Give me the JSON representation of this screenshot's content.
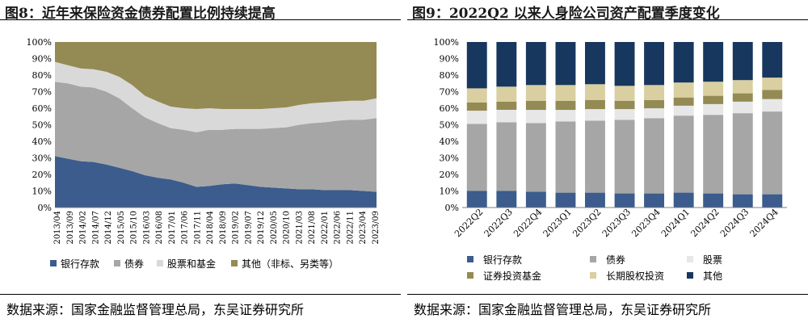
{
  "charts": [
    {
      "title": "图8：近年来保险资金债券配置比例持续提高",
      "source": "数据来源：国家金融监督管理总局，东吴证券研究所",
      "chart_data": {
        "type": "area",
        "stacked": true,
        "y_ticks": [
          "100%",
          "90%",
          "80%",
          "70%",
          "60%",
          "50%",
          "40%",
          "30%",
          "20%",
          "10%",
          "0%"
        ],
        "ylim": [
          0,
          100
        ],
        "x_tick_labels": [
          "2013/04",
          "2013/09",
          "2014/02",
          "2014/07",
          "2014/12",
          "2015/05",
          "2015/10",
          "2016/03",
          "2016/08",
          "2017/01",
          "2017/06",
          "2017/11",
          "2018/04",
          "2018/09",
          "2019/02",
          "2019/07",
          "2019/12",
          "2020/05",
          "2020/10",
          "2021/03",
          "2021/08",
          "2022/01",
          "2022/06",
          "2022/11",
          "2023/04",
          "2023/09"
        ],
        "series": [
          {
            "name": "银行存款",
            "color": "#3B5C8C",
            "values": [
              31,
              29.5,
              28,
              27.5,
              26,
              24,
              22,
              19.5,
              18,
              17,
              15,
              12.5,
              13,
              14,
              14.5,
              13.5,
              12.5,
              12,
              11.5,
              11,
              11,
              10.5,
              10.5,
              10.5,
              10,
              9.5
            ]
          },
          {
            "name": "债券",
            "color": "#A6A6A6",
            "values": [
              45,
              45.5,
              45,
              45,
              44,
              42,
              38,
              35,
              33,
              31,
              32,
              33,
              34,
              33,
              33,
              34,
              35,
              36,
              37,
              39,
              40,
              41,
              42,
              42.5,
              43,
              44.5
            ]
          },
          {
            "name": "股票和基金",
            "color": "#D9D9D9",
            "values": [
              12,
              11,
              11,
              11,
              12,
              13,
              14,
              13,
              13,
              13,
              13,
              14,
              13,
              12.5,
              12,
              12,
              12,
              12,
              12,
              12,
              12,
              12,
              11.5,
              11.5,
              11.5,
              12
            ]
          },
          {
            "name": "其他（非标、另类等）",
            "color": "#948A54",
            "values": [
              12,
              14,
              16,
              16.5,
              18,
              21,
              26,
              32.5,
              36,
              39,
              40,
              40.5,
              40,
              40.5,
              40.5,
              40.5,
              40.5,
              40,
              39.5,
              38,
              37,
              36.5,
              36,
              35.5,
              35.5,
              34
            ]
          }
        ]
      }
    },
    {
      "title": "图9：2022Q2 以来人身险公司资产配置季度变化",
      "source": "数据来源：国家金融监督管理总局，东吴证券研究所",
      "chart_data": {
        "type": "bar",
        "stacked": true,
        "y_ticks": [
          "100%",
          "90%",
          "80%",
          "70%",
          "60%",
          "50%",
          "40%",
          "30%",
          "20%",
          "10%",
          "0%"
        ],
        "ylim": [
          0,
          100
        ],
        "categories": [
          "2022Q2",
          "2022Q3",
          "2022Q4",
          "2023Q1",
          "2023Q2",
          "2023Q3",
          "2023Q4",
          "2024Q1",
          "2024Q2",
          "2024Q3",
          "2024Q4"
        ],
        "series": [
          {
            "name": "银行存款",
            "color": "#3B5C8C",
            "values": [
              10,
              10,
              9.5,
              9,
              9,
              8.5,
              8.5,
              9,
              8.5,
              8,
              8
            ]
          },
          {
            "name": "债券",
            "color": "#A6A6A6",
            "values": [
              40.5,
              41.5,
              41.5,
              43,
              43.5,
              44.5,
              45.5,
              46.5,
              47.5,
              49,
              50
            ]
          },
          {
            "name": "股票",
            "color": "#E7E7E7",
            "values": [
              8,
              7.5,
              8,
              7,
              7,
              6.5,
              6,
              6,
              6.5,
              7,
              7.5
            ]
          },
          {
            "name": "证券投资基金",
            "color": "#948A54",
            "values": [
              5,
              5,
              5.5,
              5.5,
              5.5,
              5,
              5,
              5,
              5,
              5,
              5.5
            ]
          },
          {
            "name": "长期股权投资",
            "color": "#D9CFA0",
            "values": [
              8.5,
              9,
              9.5,
              9.5,
              9.5,
              9,
              9,
              9,
              8.5,
              8,
              7.5
            ]
          },
          {
            "name": "其他",
            "color": "#17375E",
            "values": [
              28,
              27,
              26,
              26,
              25.5,
              26.5,
              26,
              24.5,
              24,
              23,
              21.5
            ]
          }
        ]
      }
    }
  ]
}
